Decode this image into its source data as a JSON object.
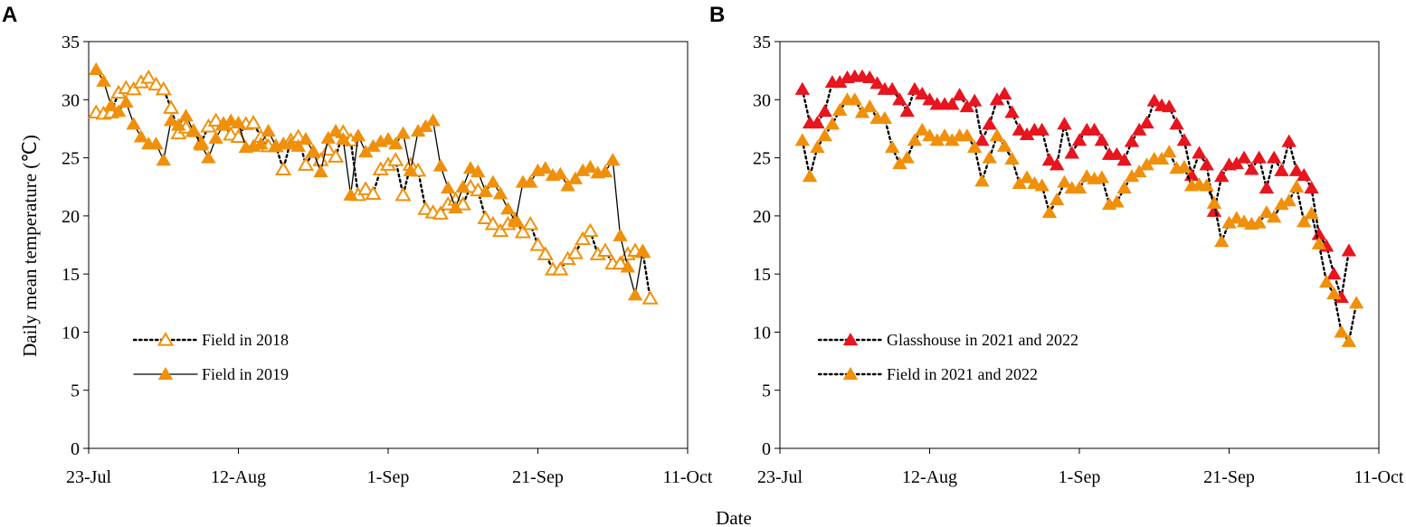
{
  "chart_data": [
    {
      "type": "line",
      "panel_label": "A",
      "title": "",
      "xlabel": "Date",
      "ylabel": "Daily mean temperature (℃)",
      "ylim": [
        0,
        35
      ],
      "yticks": [
        "0",
        "5",
        "10",
        "15",
        "20",
        "25",
        "30",
        "35"
      ],
      "xlim": [
        0,
        80
      ],
      "xticks": [
        {
          "x": 0,
          "label": "23-Jul"
        },
        {
          "x": 20,
          "label": "12-Aug"
        },
        {
          "x": 40,
          "label": "1-Sep"
        },
        {
          "x": 60,
          "label": "21-Sep"
        },
        {
          "x": 80,
          "label": "11-Oct"
        }
      ],
      "legend_position": "bottom-left",
      "series": [
        {
          "name": "Field in 2018",
          "color": "#F0900A",
          "marker": "hollow-triangle",
          "line": "dotted",
          "x_start": 1,
          "values": [
            28.9,
            28.8,
            28.9,
            30.6,
            31.0,
            30.9,
            31.5,
            31.9,
            31.3,
            30.9,
            29.3,
            27.1,
            27.6,
            27.3,
            26.3,
            27.7,
            28.2,
            27.9,
            27.0,
            26.8,
            27.9,
            28.0,
            26.8,
            26.0,
            26.0,
            24.0,
            26.5,
            26.8,
            24.4,
            25.5,
            24.8,
            25.7,
            25.1,
            27.2,
            26.5,
            21.8,
            22.3,
            21.9,
            24.0,
            24.4,
            24.8,
            21.8,
            24.4,
            23.9,
            20.6,
            20.3,
            20.2,
            21.0,
            21.4,
            21.0,
            22.5,
            22.2,
            19.8,
            19.3,
            18.7,
            19.3,
            19.7,
            18.6,
            19.3,
            17.5,
            16.7,
            15.4,
            15.4,
            16.3,
            16.8,
            18.0,
            18.7,
            16.7,
            17.0,
            15.9,
            15.9,
            16.7,
            17.0,
            16.9,
            12.9
          ]
        },
        {
          "name": "Field in 2019",
          "color": "#F0900A",
          "marker": "filled-triangle",
          "line": "solid",
          "x_start": 1,
          "values": [
            32.6,
            31.6,
            29.5,
            29.0,
            29.8,
            27.9,
            26.8,
            26.2,
            26.2,
            24.8,
            28.2,
            27.8,
            28.6,
            27.3,
            26.1,
            25.0,
            26.7,
            27.8,
            28.2,
            28.0,
            25.9,
            26.0,
            26.2,
            27.3,
            26.0,
            26.2,
            26.2,
            26.0,
            26.6,
            25.5,
            23.8,
            26.7,
            27.3,
            26.6,
            21.8,
            26.9,
            25.5,
            26.0,
            26.4,
            26.6,
            26.2,
            27.1,
            23.9,
            27.3,
            27.7,
            28.2,
            24.3,
            22.4,
            20.7,
            22.5,
            24.1,
            23.8,
            22.1,
            22.9,
            21.9,
            20.6,
            19.5,
            22.9,
            22.9,
            23.9,
            24.1,
            23.5,
            23.6,
            22.6,
            23.2,
            23.9,
            24.2,
            23.7,
            23.8,
            24.8,
            18.3,
            15.6,
            13.2,
            17.0
          ]
        }
      ]
    },
    {
      "type": "line",
      "panel_label": "B",
      "title": "",
      "xlabel": "Date",
      "ylabel": "",
      "ylim": [
        0,
        35
      ],
      "yticks": [
        "0",
        "5",
        "10",
        "15",
        "20",
        "25",
        "30",
        "35"
      ],
      "xlim": [
        0,
        80
      ],
      "xticks": [
        {
          "x": 0,
          "label": "23-Jul"
        },
        {
          "x": 20,
          "label": "12-Aug"
        },
        {
          "x": 40,
          "label": "1-Sep"
        },
        {
          "x": 60,
          "label": "21-Sep"
        },
        {
          "x": 80,
          "label": "11-Oct"
        }
      ],
      "legend_position": "bottom-left",
      "series": [
        {
          "name": "Glasshouse in 2021 and 2022",
          "color": "#E8141E",
          "marker": "filled-triangle",
          "line": "dotted",
          "x_start": 3,
          "values": [
            30.9,
            28.0,
            28.0,
            29.0,
            31.5,
            31.5,
            31.9,
            32.0,
            32.0,
            31.9,
            31.4,
            30.9,
            30.9,
            30.0,
            29.0,
            30.9,
            30.5,
            30.0,
            29.6,
            29.6,
            29.6,
            30.4,
            29.4,
            29.9,
            26.5,
            27.9,
            30.0,
            30.5,
            28.9,
            27.4,
            27.0,
            27.4,
            27.4,
            24.8,
            24.4,
            27.9,
            25.4,
            26.5,
            27.4,
            27.4,
            26.5,
            25.3,
            25.3,
            24.8,
            26.4,
            27.4,
            28.0,
            29.9,
            29.5,
            29.4,
            27.9,
            26.5,
            23.5,
            25.4,
            24.4,
            20.4,
            23.4,
            24.4,
            24.5,
            25.0,
            24.0,
            25.0,
            22.4,
            25.0,
            23.9,
            26.4,
            23.9,
            23.5,
            22.4,
            18.4,
            17.4,
            15.0,
            13.0,
            17.0
          ]
        },
        {
          "name": "Field in 2021 and 2022",
          "color": "#F0900A",
          "marker": "filled-triangle",
          "line": "dotted",
          "x_start": 3,
          "values": [
            26.5,
            23.4,
            25.9,
            26.9,
            27.9,
            29.1,
            30.0,
            30.0,
            28.9,
            29.4,
            28.4,
            28.4,
            25.9,
            24.5,
            25.0,
            26.5,
            27.4,
            26.9,
            26.5,
            26.9,
            26.5,
            26.9,
            26.9,
            25.9,
            23.0,
            25.0,
            26.9,
            26.0,
            24.9,
            22.8,
            23.3,
            22.8,
            22.6,
            20.3,
            21.4,
            22.9,
            22.4,
            22.4,
            23.4,
            23.2,
            23.3,
            21.0,
            21.2,
            22.4,
            23.4,
            23.8,
            24.4,
            24.9,
            24.9,
            25.5,
            24.1,
            24.2,
            22.6,
            22.7,
            22.6,
            21.1,
            17.8,
            19.4,
            19.8,
            19.5,
            19.3,
            19.4,
            20.3,
            19.9,
            21.0,
            21.3,
            22.5,
            19.5,
            20.2,
            17.6,
            14.3,
            13.3,
            10.0,
            9.2,
            12.5
          ]
        }
      ]
    }
  ]
}
